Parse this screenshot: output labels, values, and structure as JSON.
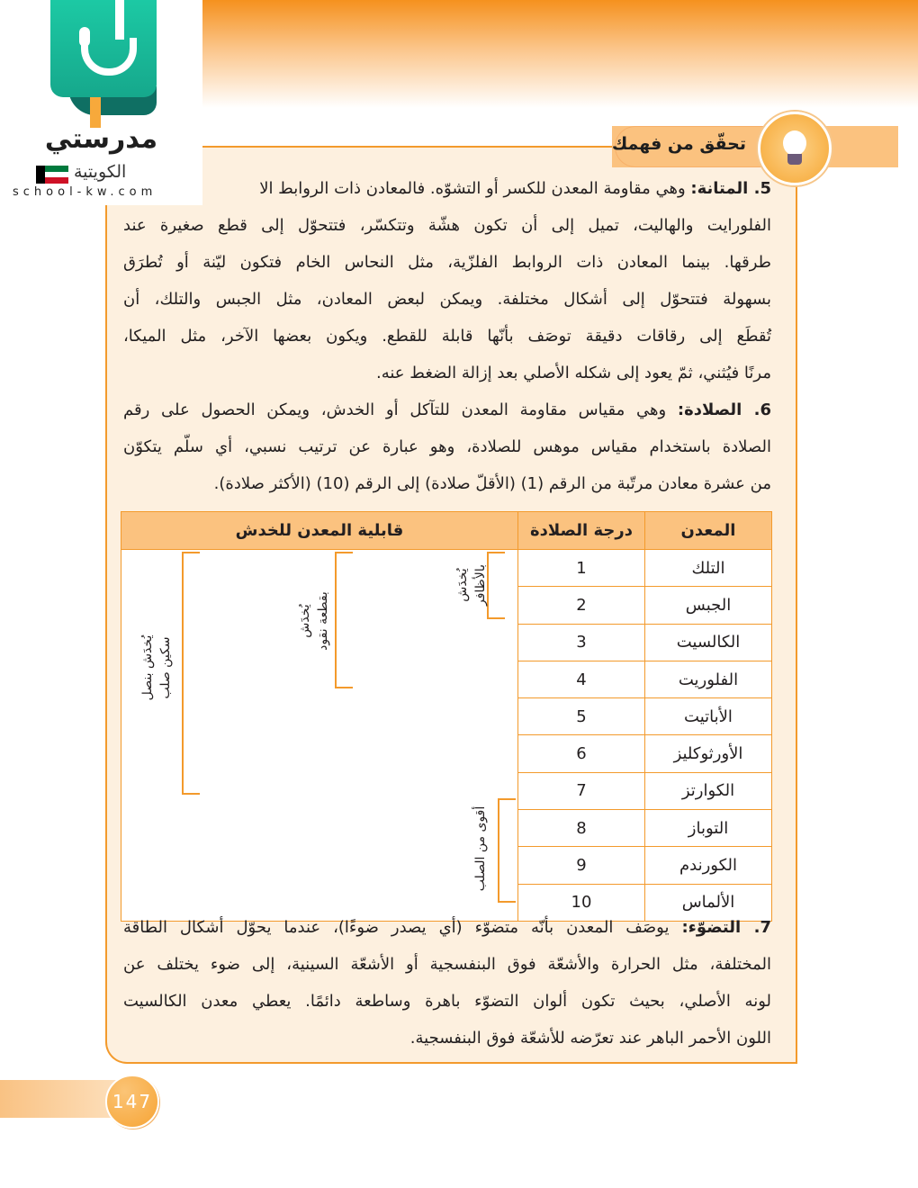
{
  "logo": {
    "name": "مدرستي",
    "sub": "الكويتية",
    "url": "school-kw.com"
  },
  "header": {
    "title": "تحقّق من فهمك",
    "icon": "lightbulb-icon",
    "accent": "#f39a2c"
  },
  "p5": {
    "label": "5. المتانة:",
    "lines": [
      "وهي مقاومة المعدن للكسر أو التشوّه. فالمعادن ذات الروابط الا",
      "الفلورايت والهاليت، تميل إلى أن تكون هشّة وتتكسّر، فتتحوّل إلى قطع صغيرة عند",
      "طرقها. بينما المعادن ذات الروابط الفلزّية، مثل النحاس الخام فتكون ليّنة أو تُطرَق",
      "بسهولة فتتحوّل إلى أشكال مختلفة. ويمكن لبعض المعادن، مثل الجبس والتلك، أن",
      "تُقطَع إلى رقاقات دقيقة توصَف بأنّها قابلة للقطع. ويكون بعضها الآخر، مثل الميكا،",
      "مرنًا فيُثني، ثمّ يعود إلى شكله الأصلي بعد إزالة الضغط عنه."
    ]
  },
  "p6": {
    "label": "6. الصلادة:",
    "lines": [
      "وهي مقياس مقاومة المعدن للتآكل أو الخدش، ويمكن الحصول على رقم",
      "الصلادة باستخدام مقياس موهس للصلادة، وهو عبارة عن ترتيب نسبي، أي سلّم يتكوّن",
      "من عشرة معادن مرتّبة من الرقم (1) (الأقلّ صلادة) إلى الرقم (10) (الأكثر صلادة)."
    ]
  },
  "table": {
    "headers": [
      "المعدن",
      "درجة الصلادة",
      "قابلية المعدن للخدش"
    ],
    "rows": [
      {
        "mineral": "التلك",
        "hardness": "1"
      },
      {
        "mineral": "الجبس",
        "hardness": "2"
      },
      {
        "mineral": "الكالسيت",
        "hardness": "3"
      },
      {
        "mineral": "الفلوريت",
        "hardness": "4"
      },
      {
        "mineral": "الأباتيت",
        "hardness": "5"
      },
      {
        "mineral": "الأورثوكليز",
        "hardness": "6"
      },
      {
        "mineral": "الكوارتز",
        "hardness": "7"
      },
      {
        "mineral": "التوباز",
        "hardness": "8"
      },
      {
        "mineral": "الكورندم",
        "hardness": "9"
      },
      {
        "mineral": "الألماس",
        "hardness": "10"
      }
    ],
    "scratch_labels": {
      "nail": [
        "يُخدَش",
        "بالأظافر"
      ],
      "coin": [
        "يُخدَش",
        "بقطعة نقود"
      ],
      "knife": [
        "يُخدَش بنصل",
        "سكين صلب"
      ],
      "steel": [
        "أقوى من الصلب"
      ]
    }
  },
  "p7": {
    "label": "7. التضوّء:",
    "lines": [
      "يوصَف المعدن بأنّه متضوّء (أي يصدر ضوءًا)، عندما يحوّل أشكال الطاقة",
      "المختلفة، مثل الحرارة والأشعّة فوق البنفسجية أو الأشعّة السينية، إلى ضوء يختلف عن",
      "لونه الأصلي، بحيث تكون ألوان التضوّء باهرة وساطعة دائمًا. يعطي معدن الكالسيت",
      "اللون الأحمر الباهر عند تعرّضه للأشعّة فوق البنفسجية."
    ]
  },
  "page_number": "147"
}
